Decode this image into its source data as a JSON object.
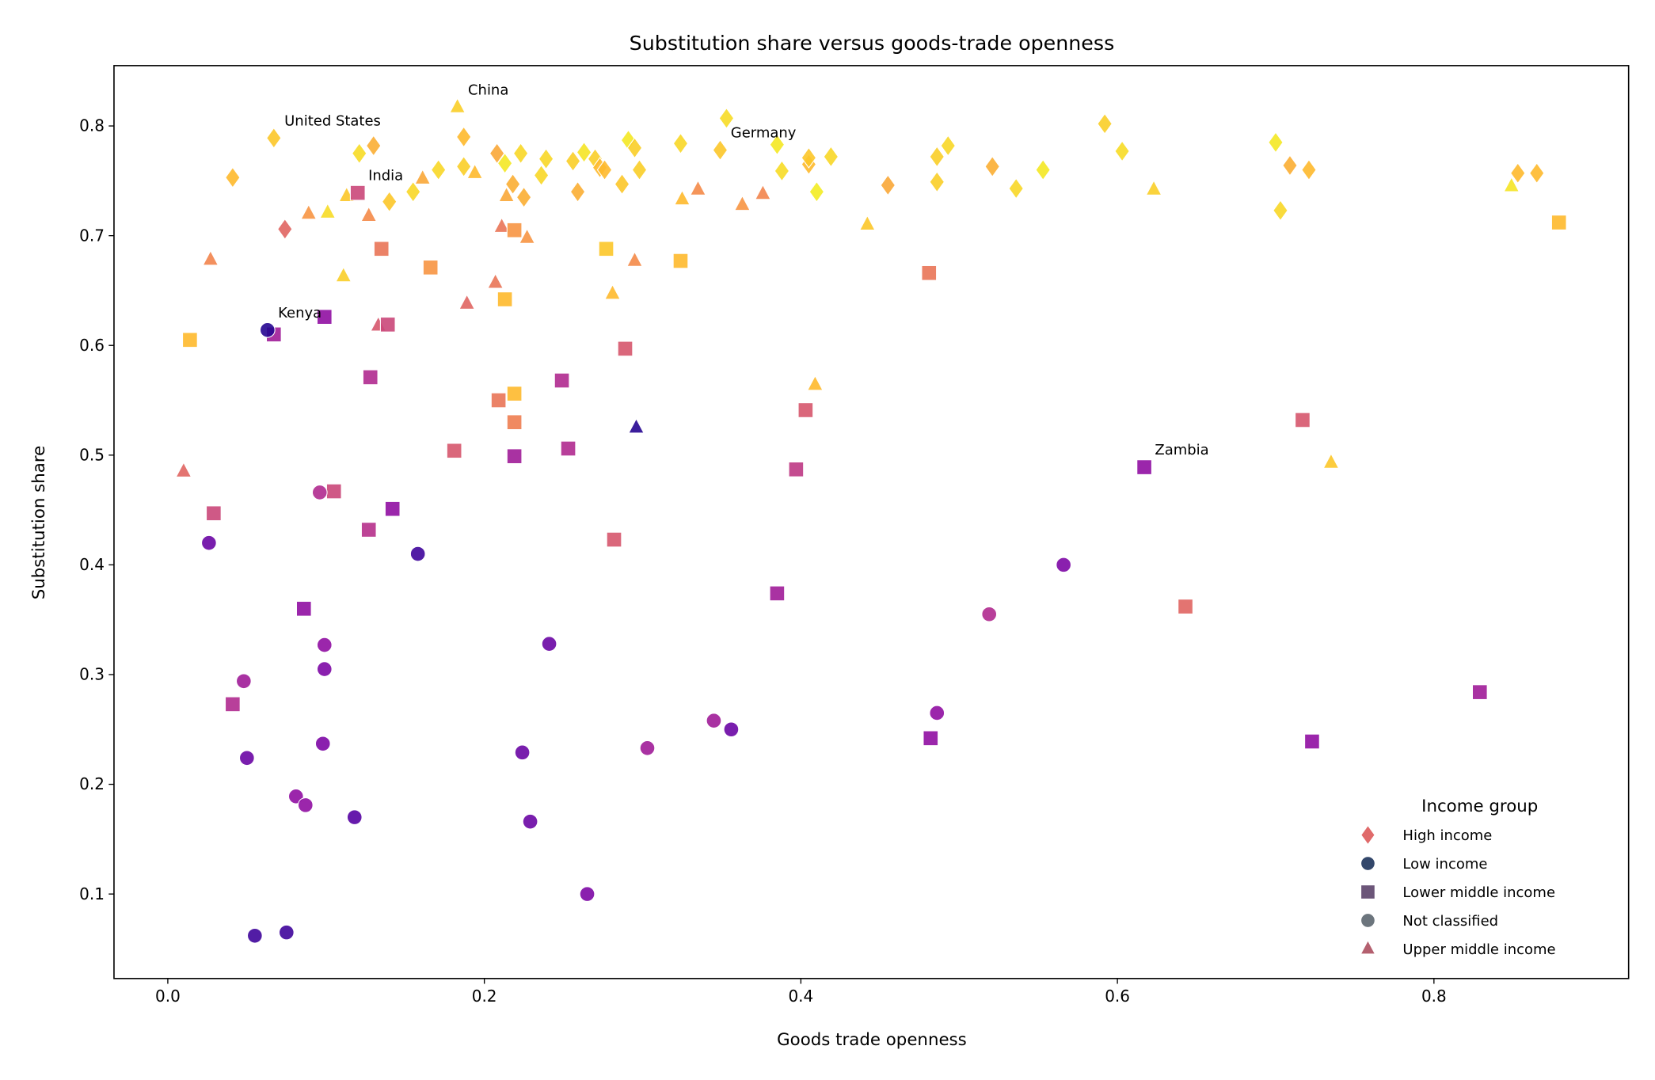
{
  "chart_data": {
    "type": "scatter",
    "title": "Substitution share versus goods-trade openness",
    "xlabel": "Goods trade openness",
    "ylabel": "Substitution share",
    "xlim": [
      -0.034,
      0.923
    ],
    "ylim": [
      0.023,
      0.855
    ],
    "xticks": [
      "0.0",
      "0.2",
      "0.4",
      "0.6",
      "0.8"
    ],
    "xtick_values": [
      0.0,
      0.2,
      0.4,
      0.6,
      0.8
    ],
    "yticks": [
      "0.1",
      "0.2",
      "0.3",
      "0.4",
      "0.5",
      "0.6",
      "0.7",
      "0.8"
    ],
    "ytick_values": [
      0.1,
      0.2,
      0.3,
      0.4,
      0.5,
      0.6,
      0.7,
      0.8
    ],
    "grid": false,
    "colormap": "plasma",
    "legend": {
      "title": "Income group",
      "placement": "lower-right",
      "entries": [
        {
          "label": "High income",
          "marker": "diamond",
          "color": "#e06a6a"
        },
        {
          "label": "Low income",
          "marker": "circle",
          "color": "#33476b"
        },
        {
          "label": "Lower middle income",
          "marker": "square",
          "color": "#6c5679"
        },
        {
          "label": "Not classified",
          "marker": "circle",
          "color": "#6c757d"
        },
        {
          "label": "Upper middle income",
          "marker": "triangle",
          "color": "#b4606f"
        }
      ]
    },
    "series": [
      {
        "name": "High income",
        "marker": "diamond",
        "points": [
          [
            0.041,
            0.753,
            0.85
          ],
          [
            0.067,
            0.789,
            0.88,
            "United States"
          ],
          [
            0.074,
            0.706,
            0.6
          ],
          [
            0.121,
            0.775,
            0.93
          ],
          [
            0.13,
            0.782,
            0.82
          ],
          [
            0.14,
            0.731,
            0.88
          ],
          [
            0.155,
            0.74,
            0.92
          ],
          [
            0.171,
            0.76,
            0.92
          ],
          [
            0.187,
            0.79,
            0.85
          ],
          [
            0.187,
            0.763,
            0.9
          ],
          [
            0.208,
            0.775,
            0.8
          ],
          [
            0.213,
            0.766,
            0.96
          ],
          [
            0.218,
            0.747,
            0.82
          ],
          [
            0.223,
            0.775,
            0.92
          ],
          [
            0.225,
            0.735,
            0.82
          ],
          [
            0.236,
            0.755,
            0.92
          ],
          [
            0.239,
            0.77,
            0.92
          ],
          [
            0.256,
            0.768,
            0.9
          ],
          [
            0.259,
            0.74,
            0.82
          ],
          [
            0.263,
            0.776,
            0.95
          ],
          [
            0.27,
            0.77,
            0.9
          ],
          [
            0.273,
            0.762,
            0.85
          ],
          [
            0.276,
            0.76,
            0.85
          ],
          [
            0.287,
            0.747,
            0.88
          ],
          [
            0.291,
            0.787,
            0.96
          ],
          [
            0.295,
            0.78,
            0.9
          ],
          [
            0.298,
            0.76,
            0.9
          ],
          [
            0.324,
            0.784,
            0.92
          ],
          [
            0.349,
            0.778,
            0.88,
            "Germany"
          ],
          [
            0.353,
            0.807,
            0.93
          ],
          [
            0.385,
            0.783,
            0.96
          ],
          [
            0.388,
            0.759,
            0.93
          ],
          [
            0.405,
            0.765,
            0.85
          ],
          [
            0.405,
            0.771,
            0.88
          ],
          [
            0.41,
            0.74,
            0.97
          ],
          [
            0.419,
            0.772,
            0.92
          ],
          [
            0.455,
            0.746,
            0.8
          ],
          [
            0.486,
            0.772,
            0.9
          ],
          [
            0.486,
            0.749,
            0.9
          ],
          [
            0.493,
            0.782,
            0.92
          ],
          [
            0.521,
            0.763,
            0.82
          ],
          [
            0.536,
            0.743,
            0.92
          ],
          [
            0.553,
            0.76,
            0.96
          ],
          [
            0.592,
            0.802,
            0.9
          ],
          [
            0.603,
            0.777,
            0.93
          ],
          [
            0.7,
            0.785,
            0.96
          ],
          [
            0.703,
            0.723,
            0.92
          ],
          [
            0.709,
            0.764,
            0.82
          ],
          [
            0.721,
            0.76,
            0.85
          ],
          [
            0.853,
            0.757,
            0.85
          ],
          [
            0.865,
            0.757,
            0.85
          ]
        ]
      },
      {
        "name": "Upper middle income",
        "marker": "triangle",
        "points": [
          [
            0.01,
            0.485,
            0.6
          ],
          [
            0.027,
            0.678,
            0.7
          ],
          [
            0.089,
            0.72,
            0.75
          ],
          [
            0.101,
            0.721,
            0.93
          ],
          [
            0.111,
            0.663,
            0.9
          ],
          [
            0.113,
            0.736,
            0.88
          ],
          [
            0.127,
            0.718,
            0.72
          ],
          [
            0.133,
            0.618,
            0.55
          ],
          [
            0.161,
            0.752,
            0.8
          ],
          [
            0.183,
            0.817,
            0.9,
            "China"
          ],
          [
            0.189,
            0.638,
            0.6
          ],
          [
            0.194,
            0.757,
            0.85
          ],
          [
            0.207,
            0.657,
            0.65
          ],
          [
            0.211,
            0.708,
            0.65
          ],
          [
            0.214,
            0.736,
            0.8
          ],
          [
            0.227,
            0.698,
            0.75
          ],
          [
            0.281,
            0.647,
            0.85
          ],
          [
            0.295,
            0.677,
            0.72
          ],
          [
            0.296,
            0.525,
            0.05
          ],
          [
            0.325,
            0.733,
            0.85
          ],
          [
            0.335,
            0.742,
            0.72
          ],
          [
            0.363,
            0.728,
            0.75
          ],
          [
            0.376,
            0.738,
            0.7
          ],
          [
            0.409,
            0.564,
            0.85
          ],
          [
            0.442,
            0.71,
            0.88
          ],
          [
            0.623,
            0.742,
            0.9
          ],
          [
            0.735,
            0.493,
            0.88
          ],
          [
            0.849,
            0.745,
            0.95
          ]
        ]
      },
      {
        "name": "Lower middle income",
        "marker": "square",
        "points": [
          [
            0.014,
            0.605,
            0.85
          ],
          [
            0.029,
            0.447,
            0.5
          ],
          [
            0.041,
            0.273,
            0.4
          ],
          [
            0.067,
            0.61,
            0.35
          ],
          [
            0.086,
            0.36,
            0.3
          ],
          [
            0.099,
            0.626,
            0.3
          ],
          [
            0.105,
            0.467,
            0.5
          ],
          [
            0.12,
            0.739,
            0.5,
            "India"
          ],
          [
            0.127,
            0.432,
            0.42
          ],
          [
            0.128,
            0.571,
            0.4
          ],
          [
            0.135,
            0.688,
            0.65
          ],
          [
            0.139,
            0.619,
            0.5
          ],
          [
            0.142,
            0.451,
            0.3
          ],
          [
            0.166,
            0.671,
            0.75
          ],
          [
            0.181,
            0.504,
            0.55
          ],
          [
            0.209,
            0.55,
            0.65
          ],
          [
            0.213,
            0.642,
            0.85
          ],
          [
            0.219,
            0.53,
            0.68
          ],
          [
            0.219,
            0.499,
            0.35
          ],
          [
            0.219,
            0.556,
            0.85
          ],
          [
            0.219,
            0.705,
            0.75
          ],
          [
            0.249,
            0.568,
            0.4
          ],
          [
            0.253,
            0.506,
            0.4
          ],
          [
            0.277,
            0.688,
            0.88
          ],
          [
            0.282,
            0.423,
            0.55
          ],
          [
            0.289,
            0.597,
            0.55
          ],
          [
            0.324,
            0.677,
            0.85
          ],
          [
            0.385,
            0.374,
            0.35
          ],
          [
            0.397,
            0.487,
            0.45
          ],
          [
            0.403,
            0.541,
            0.55
          ],
          [
            0.481,
            0.666,
            0.65
          ],
          [
            0.482,
            0.242,
            0.3
          ],
          [
            0.617,
            0.489,
            0.3,
            "Zambia"
          ],
          [
            0.643,
            0.362,
            0.6
          ],
          [
            0.717,
            0.532,
            0.55
          ],
          [
            0.723,
            0.239,
            0.3
          ],
          [
            0.829,
            0.284,
            0.35
          ],
          [
            0.879,
            0.712,
            0.85
          ]
        ]
      },
      {
        "name": "Low income",
        "marker": "circle",
        "points": [
          [
            0.026,
            0.42,
            0.2
          ],
          [
            0.048,
            0.294,
            0.35
          ],
          [
            0.05,
            0.224,
            0.2
          ],
          [
            0.055,
            0.062,
            0.1
          ],
          [
            0.063,
            0.614,
            0.05,
            "Kenya"
          ],
          [
            0.075,
            0.065,
            0.1
          ],
          [
            0.081,
            0.189,
            0.3
          ],
          [
            0.087,
            0.181,
            0.3
          ],
          [
            0.096,
            0.466,
            0.4
          ],
          [
            0.098,
            0.237,
            0.25
          ],
          [
            0.099,
            0.305,
            0.25
          ],
          [
            0.099,
            0.327,
            0.3
          ],
          [
            0.118,
            0.17,
            0.15
          ],
          [
            0.158,
            0.41,
            0.1
          ],
          [
            0.224,
            0.229,
            0.2
          ],
          [
            0.229,
            0.166,
            0.2
          ],
          [
            0.241,
            0.328,
            0.2
          ],
          [
            0.265,
            0.1,
            0.25
          ],
          [
            0.303,
            0.233,
            0.35
          ],
          [
            0.345,
            0.258,
            0.35
          ],
          [
            0.356,
            0.25,
            0.2
          ],
          [
            0.486,
            0.265,
            0.3
          ],
          [
            0.519,
            0.355,
            0.4
          ],
          [
            0.566,
            0.4,
            0.25
          ]
        ]
      }
    ]
  }
}
